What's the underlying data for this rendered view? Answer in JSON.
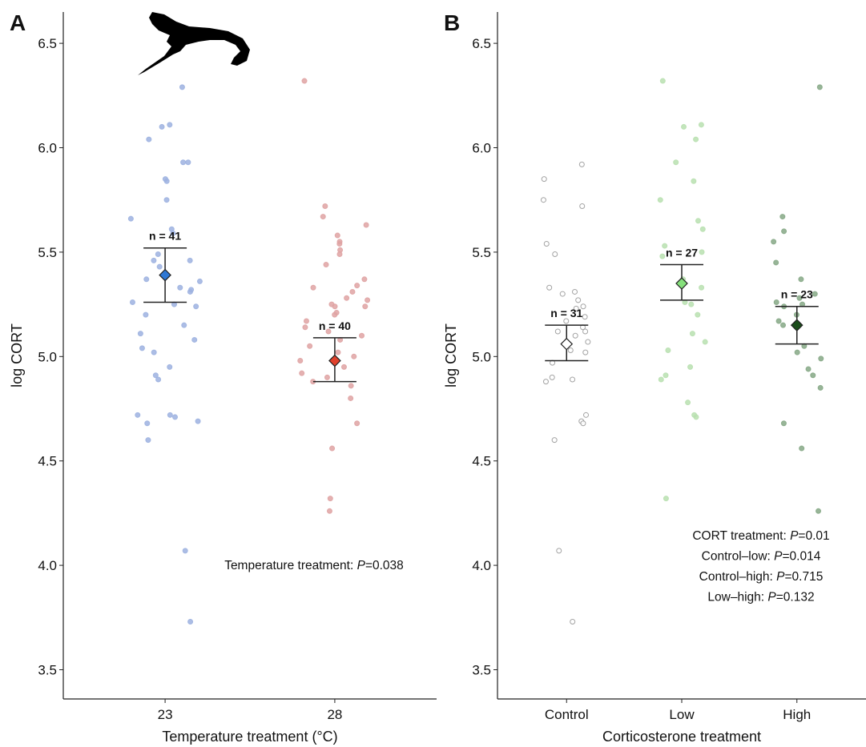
{
  "chart_data": [
    {
      "type": "strip",
      "panel_label": "A",
      "x_label": "Temperature treatment (°C)",
      "y_label": "log CORT",
      "categories": [
        "23",
        "28"
      ],
      "ylim": [
        3.36,
        6.65
      ],
      "yticks": [
        3.5,
        {
          "value": 4,
          "label": "4.0"
        },
        4.5,
        {
          "value": 5,
          "label": "5.0"
        },
        5.5,
        {
          "value": 6,
          "label": "6.0"
        },
        6.5
      ],
      "groups": [
        {
          "color": "#9db2e0",
          "mean_color": "#2f78d4",
          "mean": 5.39,
          "error_low": 5.26,
          "error_high": 5.52,
          "n_label": "n = 41",
          "values": [
            6.29,
            6.11,
            6.1,
            6.04,
            5.93,
            5.93,
            5.85,
            5.84,
            5.75,
            5.66,
            5.61,
            5.59,
            5.49,
            5.46,
            5.46,
            5.43,
            5.37,
            5.36,
            5.33,
            5.32,
            5.31,
            5.26,
            5.25,
            5.24,
            5.2,
            5.15,
            5.11,
            5.08,
            5.04,
            5.02,
            4.95,
            4.91,
            4.89,
            4.72,
            4.72,
            4.71,
            4.69,
            4.68,
            4.6,
            4.07,
            3.73
          ]
        },
        {
          "color": "#dfa3a3",
          "mean_color": "#e0412c",
          "mean": 4.98,
          "error_low": 4.88,
          "error_high": 5.09,
          "n_label": "n = 40",
          "values": [
            6.32,
            5.72,
            5.67,
            5.63,
            5.58,
            5.55,
            5.54,
            5.51,
            5.49,
            5.44,
            5.37,
            5.34,
            5.33,
            5.31,
            5.28,
            5.27,
            5.25,
            5.24,
            5.24,
            5.21,
            5.2,
            5.17,
            5.14,
            5.12,
            5.1,
            5.08,
            5.05,
            5.02,
            5.0,
            4.98,
            4.95,
            4.92,
            4.9,
            4.88,
            4.86,
            4.8,
            4.68,
            4.56,
            4.32,
            4.26
          ]
        }
      ],
      "stats": [
        {
          "label": "Temperature treatment: ",
          "p": "P",
          "value": "=0.038"
        }
      ]
    },
    {
      "type": "strip",
      "panel_label": "B",
      "x_label": "Corticosterone treatment",
      "y_label": "log CORT",
      "categories": [
        "Control",
        "Low",
        "High"
      ],
      "ylim": [
        3.36,
        6.65
      ],
      "yticks": [
        3.5,
        {
          "value": 4,
          "label": "4.0"
        },
        4.5,
        {
          "value": 5,
          "label": "5.0"
        },
        5.5,
        {
          "value": 6,
          "label": "6.0"
        },
        6.5
      ],
      "groups": [
        {
          "color": "#ffffff",
          "mean_color": "#ffffff",
          "mean": 5.06,
          "error_low": 4.98,
          "error_high": 5.15,
          "n_label": "n = 31",
          "values": [
            5.92,
            5.85,
            5.75,
            5.72,
            5.54,
            5.49,
            5.33,
            5.31,
            5.3,
            5.27,
            5.24,
            5.23,
            5.19,
            5.17,
            5.14,
            5.12,
            5.12,
            5.1,
            5.07,
            5.03,
            5.02,
            4.97,
            4.9,
            4.89,
            4.88,
            4.72,
            4.69,
            4.68,
            4.6,
            4.07,
            3.73
          ]
        },
        {
          "color": "#b9e0b0",
          "mean_color": "#86e07c",
          "mean": 5.35,
          "error_low": 5.27,
          "error_high": 5.44,
          "n_label": "n = 27",
          "values": [
            6.32,
            6.11,
            6.1,
            6.04,
            5.93,
            5.84,
            5.75,
            5.65,
            5.61,
            5.53,
            5.5,
            5.48,
            5.37,
            5.33,
            5.26,
            5.25,
            5.2,
            5.11,
            5.07,
            5.03,
            4.95,
            4.91,
            4.89,
            4.78,
            4.72,
            4.71,
            4.32
          ]
        },
        {
          "color": "#86a886",
          "mean_color": "#1b4d1b",
          "mean": 5.15,
          "error_low": 5.06,
          "error_high": 5.24,
          "n_label": "n = 23",
          "values": [
            6.29,
            5.67,
            5.6,
            5.55,
            5.45,
            5.37,
            5.3,
            5.28,
            5.26,
            5.25,
            5.24,
            5.2,
            5.17,
            5.15,
            5.05,
            5.02,
            4.99,
            4.94,
            4.91,
            4.85,
            4.68,
            4.56,
            4.26
          ]
        }
      ],
      "stats": [
        {
          "label": "CORT treatment: ",
          "p": "P",
          "value": "=0.01"
        },
        {
          "label": "Control–low: ",
          "p": "P",
          "value": "=0.014"
        },
        {
          "label": "Control–high: ",
          "p": "P",
          "value": "=0.715"
        },
        {
          "label": "Low–high: ",
          "p": "P",
          "value": "=0.132"
        }
      ]
    }
  ]
}
